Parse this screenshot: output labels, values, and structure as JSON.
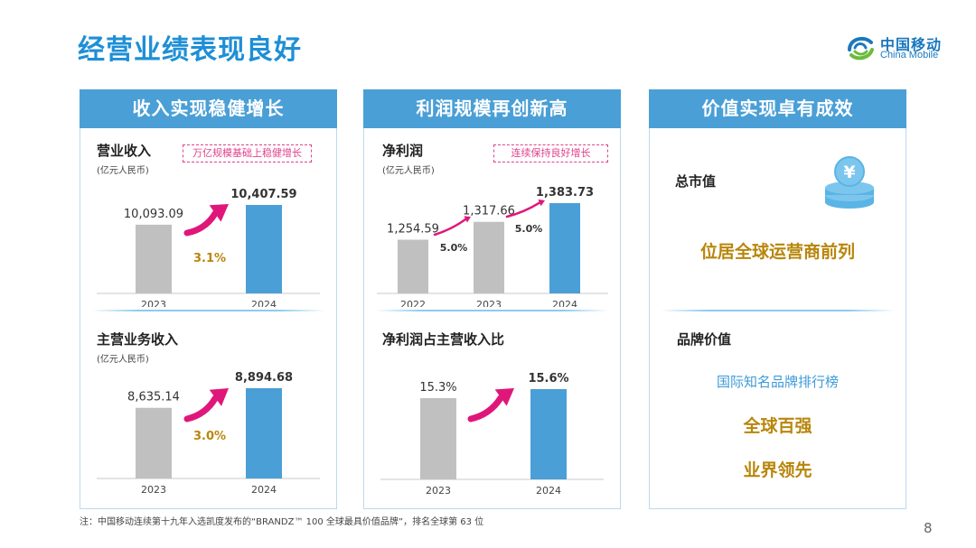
{
  "page": {
    "title": "经营业绩表现良好",
    "logo_cn": "中国移动",
    "logo_en": "China Mobile",
    "footnote": "注：中国移动连续第十九年入选凯度发布的“BRANDZ™ 100 全球最具价值品牌”，排名全球第 63 位",
    "page_number": "8"
  },
  "colors": {
    "accent_blue": "#4a9fd6",
    "bar_gray": "#c0c0c0",
    "arrow_pink": "#e0177a",
    "gold": "#b8860b"
  },
  "panels": {
    "income": {
      "header": "收入实现稳健增长"
    },
    "profit": {
      "header": "利润规模再创新高"
    },
    "value": {
      "header": "价值实现卓有成效",
      "market_cap_label": "总市值",
      "market_cap_text": "位居全球运营商前列",
      "brand_label": "品牌价值",
      "brand_list": "国际知名品牌排行榜",
      "brand_rank": "全球百强",
      "brand_lead": "业界领先",
      "coin_icon": "yen-coin-stack-icon"
    }
  },
  "chart_data": [
    {
      "id": "revenue",
      "type": "bar",
      "title": "营业收入",
      "unit": "(亿元人民币)",
      "tag": "万亿规模基础上稳健增长",
      "categories": [
        "2023",
        "2024"
      ],
      "values": [
        10093.09,
        10407.59
      ],
      "value_labels": [
        "10,093.09",
        "10,407.59"
      ],
      "growth": [
        "3.1%"
      ],
      "highlight_last": true
    },
    {
      "id": "main_revenue",
      "type": "bar",
      "title": "主营业务收入",
      "unit": "(亿元人民币)",
      "categories": [
        "2023",
        "2024"
      ],
      "values": [
        8635.14,
        8894.68
      ],
      "value_labels": [
        "8,635.14",
        "8,894.68"
      ],
      "growth": [
        "3.0%"
      ],
      "highlight_last": true
    },
    {
      "id": "net_profit",
      "type": "bar",
      "title": "净利润",
      "unit": "(亿元人民币)",
      "tag": "连续保持良好增长",
      "categories": [
        "2022",
        "2023",
        "2024"
      ],
      "values": [
        1254.59,
        1317.66,
        1383.73
      ],
      "value_labels": [
        "1,254.59",
        "1,317.66",
        "1,383.73"
      ],
      "growth": [
        "5.0%",
        "5.0%"
      ],
      "highlight_last": true
    },
    {
      "id": "net_profit_ratio",
      "type": "bar",
      "title": "净利润占主营收入比",
      "categories": [
        "2023",
        "2024"
      ],
      "values": [
        15.3,
        15.6
      ],
      "value_labels": [
        "15.3%",
        "15.6%"
      ],
      "growth": [],
      "highlight_last": true
    }
  ]
}
